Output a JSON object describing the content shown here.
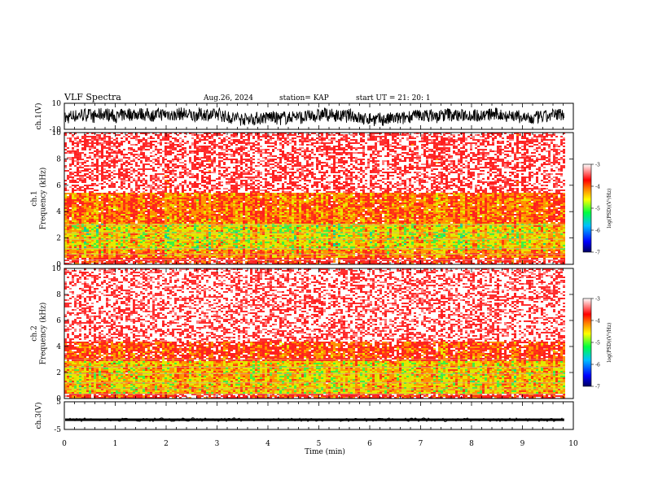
{
  "header": {
    "title": "VLF Spectra",
    "date": "Aug.26, 2024",
    "station": "station= KAP",
    "start": "start  UT  =   21: 20: 1"
  },
  "chart_data": [
    {
      "type": "line",
      "ylabel": "ch.1(V)",
      "ylim": [
        -10,
        10
      ],
      "yticks": [
        "10",
        "-10"
      ],
      "x_unit": "min",
      "xlim": [
        0,
        10
      ],
      "description_values": {
        "min": -10,
        "max": 10,
        "typical_range": [
          -7,
          4
        ]
      }
    },
    {
      "type": "heatmap",
      "ylabel": "ch.1\nFrequency (kHz)",
      "ylabel_lines": [
        "ch.1",
        "Frequency  (kHz)"
      ],
      "ylim": [
        0,
        10
      ],
      "yticks": [
        "0",
        "2",
        "4",
        "6",
        "8",
        "10"
      ],
      "xlim": [
        0,
        9.8
      ],
      "colorbar": {
        "label": "log(PSD)(V²/Hz)",
        "ticks": [
          "-3",
          "-4",
          "-5",
          "-6",
          "-7"
        ],
        "range": [
          -7,
          -3
        ]
      },
      "bands": [
        {
          "f_low": 0,
          "f_high": 0.5,
          "level": -3.8
        },
        {
          "f_low": 0.5,
          "f_high": 1.2,
          "level": -4.3
        },
        {
          "f_low": 1.2,
          "f_high": 3.2,
          "level": -4.7
        },
        {
          "f_low": 3.2,
          "f_high": 5.5,
          "level": -4.2
        },
        {
          "f_low": 5.5,
          "f_high": 10,
          "level": -3.4
        }
      ]
    },
    {
      "type": "heatmap",
      "ylabel_lines": [
        "ch.2",
        "Frequency  (kHz)"
      ],
      "ylim": [
        0,
        10
      ],
      "yticks": [
        "0",
        "2",
        "4",
        "6",
        "8",
        "10"
      ],
      "xlim": [
        0,
        9.8
      ],
      "colorbar": {
        "label": "log(PSD)(V²/Hz)",
        "ticks": [
          "-3",
          "-4",
          "-5",
          "-6",
          "-7"
        ],
        "range": [
          -7,
          -3
        ]
      },
      "bands": [
        {
          "f_low": 0,
          "f_high": 0.5,
          "level": -3.9
        },
        {
          "f_low": 0.5,
          "f_high": 3.0,
          "level": -4.6
        },
        {
          "f_low": 3.0,
          "f_high": 4.5,
          "level": -4.0
        },
        {
          "f_low": 4.5,
          "f_high": 10,
          "level": -3.2
        }
      ]
    },
    {
      "type": "line",
      "ylabel": "ch.3(V)",
      "ylim": [
        -5,
        5
      ],
      "yticks": [
        "5",
        "-5"
      ],
      "xlim": [
        0,
        9.8
      ],
      "description_values": {
        "mean": -1.5
      }
    }
  ],
  "xaxis": {
    "label": "Time  (min)",
    "ticks": [
      "0",
      "1",
      "2",
      "3",
      "4",
      "5",
      "6",
      "7",
      "8",
      "9",
      "10"
    ],
    "range": [
      0,
      10
    ]
  },
  "colors": {
    "red": "#ff2020",
    "orange": "#ff8800",
    "yellow": "#e8e800",
    "green": "#33ee33",
    "blue": "#0000ff",
    "black": "#000000"
  }
}
